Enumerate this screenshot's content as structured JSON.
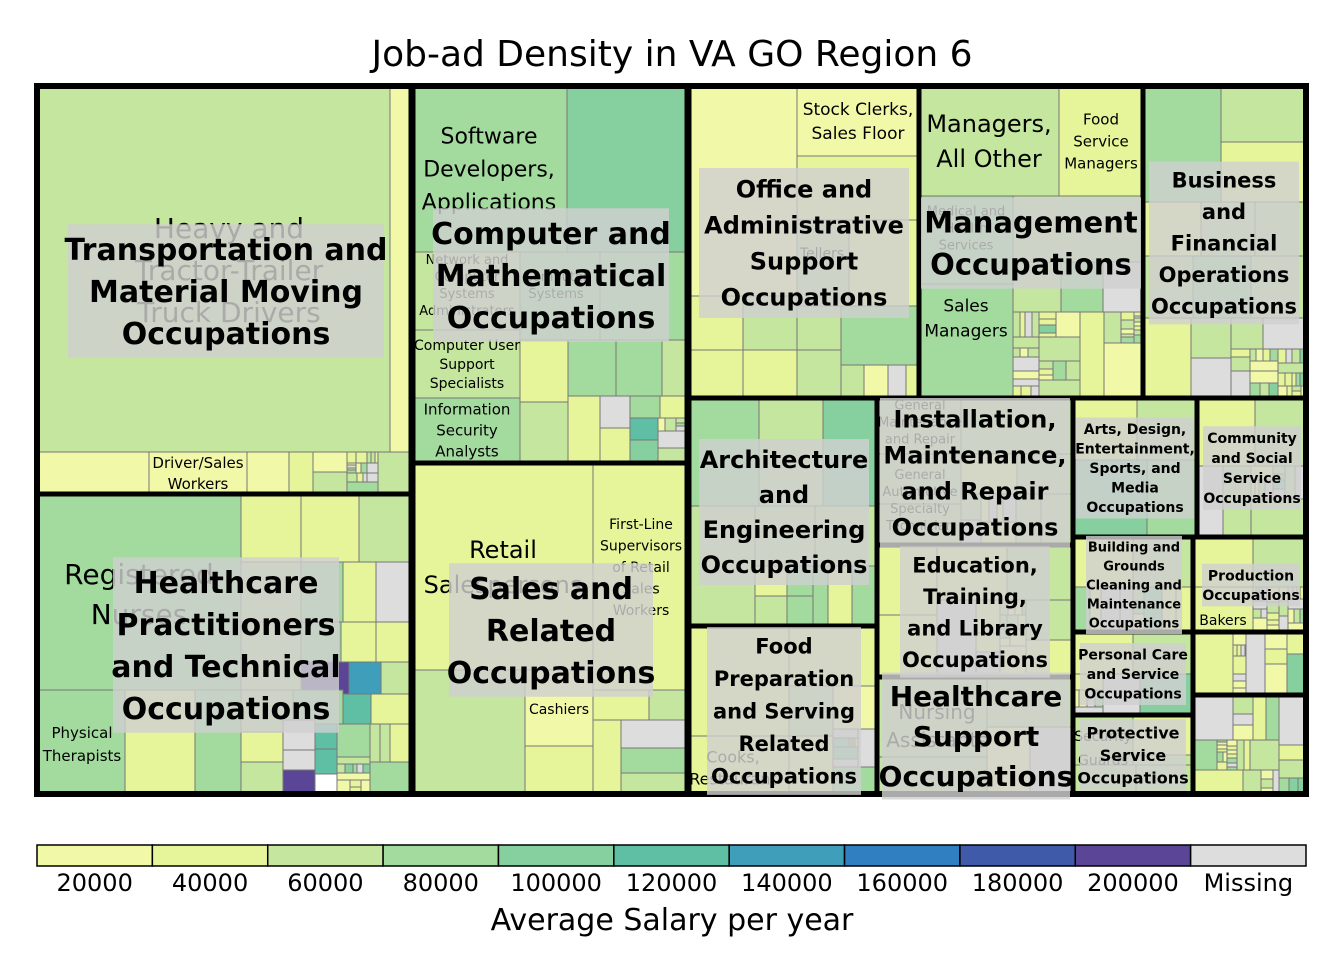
{
  "chart_data": {
    "type": "treemap",
    "title": "Job-ad Density in VA GO Region 6",
    "colorbar": {
      "label": "Average Salary per year",
      "ticks": [
        "20000",
        "40000",
        "60000",
        "80000",
        "100000",
        "120000",
        "140000",
        "160000",
        "180000",
        "200000",
        "Missing"
      ],
      "colors": [
        "#f1f8a8",
        "#e6f59a",
        "#c4e69e",
        "#a3db9e",
        "#86d0a0",
        "#5ebfa5",
        "#3f9fbb",
        "#2f7fc1",
        "#3f5aa8",
        "#5a4596",
        "#dddddd"
      ]
    },
    "groups": [
      {
        "name": "Transportation and Material Moving Occupations",
        "leaves": [
          {
            "name": "Heavy and Tractor-Trailer Truck Drivers",
            "salary": 48000
          },
          {
            "name": "Driver/Sales Workers",
            "salary": 30000
          }
        ]
      },
      {
        "name": "Healthcare Practitioners and Technical Occupations",
        "leaves": [
          {
            "name": "Registered Nurses",
            "salary": 68000
          },
          {
            "name": "Physical Therapists",
            "salary": 80000
          }
        ]
      },
      {
        "name": "Computer and Mathematical Occupations",
        "leaves": [
          {
            "name": "Software Developers, Applications",
            "salary": 88000
          },
          {
            "name": "Network and Computer Systems Administrators",
            "salary": 78000
          },
          {
            "name": "Computer User Support Specialists",
            "salary": 50000
          },
          {
            "name": "Information Security Analysts",
            "salary": 90000
          }
        ]
      },
      {
        "name": "Sales and Related Occupations",
        "leaves": [
          {
            "name": "Retail Salespersons",
            "salary": 28000
          },
          {
            "name": "First-Line Supervisors of Retail Sales Workers",
            "salary": 40000
          },
          {
            "name": "Cashiers",
            "salary": 22000
          }
        ]
      },
      {
        "name": "Office and Administrative Support Occupations",
        "leaves": [
          {
            "name": "Stock Clerks, Sales Floor",
            "salary": 26000
          },
          {
            "name": "Tellers",
            "salary": 30000
          }
        ]
      },
      {
        "name": "Management Occupations",
        "leaves": [
          {
            "name": "Managers, All Other",
            "salary": 70000
          },
          {
            "name": "Food Service Managers",
            "salary": 50000
          },
          {
            "name": "Medical and Health Services Managers",
            "salary": 80000
          },
          {
            "name": "Sales Managers",
            "salary": 78000
          }
        ]
      },
      {
        "name": "Business and Financial Operations Occupations",
        "leaves": []
      },
      {
        "name": "Architecture and Engineering Occupations",
        "leaves": []
      },
      {
        "name": "Installation, Maintenance, and Repair Occupations",
        "leaves": [
          {
            "name": "General Maintenance and Repair Workers",
            "salary": 38000
          },
          {
            "name": "Automotive Service Technicians and Mechanics",
            "salary": 40000
          }
        ]
      },
      {
        "name": "Arts, Design, Entertainment, Sports, and Media Occupations",
        "leaves": []
      },
      {
        "name": "Community and Social Service Occupations",
        "leaves": []
      },
      {
        "name": "Education, Training, and Library Occupations",
        "leaves": []
      },
      {
        "name": "Building and Grounds Cleaning and Maintenance Occupations",
        "leaves": []
      },
      {
        "name": "Production Occupations",
        "leaves": [
          {
            "name": "Bakers",
            "salary": 26000
          }
        ]
      },
      {
        "name": "Food Preparation and Serving Related Occupations",
        "leaves": [
          {
            "name": "Cooks, Restaurant",
            "salary": 24000
          }
        ]
      },
      {
        "name": "Healthcare Support Occupations",
        "leaves": [
          {
            "name": "Nursing Assistants",
            "salary": 28000
          }
        ]
      },
      {
        "name": "Personal Care and Service Occupations",
        "leaves": []
      },
      {
        "name": "Protective Service Occupations",
        "leaves": [
          {
            "name": "Security Guards",
            "salary": 28000
          }
        ]
      }
    ]
  }
}
